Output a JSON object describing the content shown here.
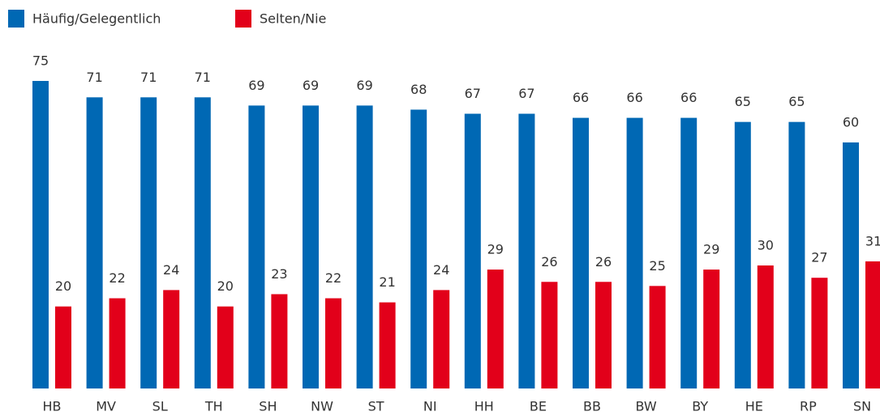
{
  "chart_data": {
    "type": "bar",
    "categories": [
      "HB",
      "MV",
      "SL",
      "TH",
      "SH",
      "NW",
      "ST",
      "NI",
      "HH",
      "BE",
      "BB",
      "BW",
      "BY",
      "HE",
      "RP",
      "SN"
    ],
    "series": [
      {
        "name": "Häufig/Gelegentlich",
        "color": "#0068b4",
        "values": [
          75,
          71,
          71,
          71,
          69,
          69,
          69,
          68,
          67,
          67,
          66,
          66,
          66,
          65,
          65,
          60
        ]
      },
      {
        "name": "Selten/Nie",
        "color": "#e2001a",
        "values": [
          20,
          22,
          24,
          20,
          23,
          22,
          21,
          24,
          29,
          26,
          26,
          25,
          29,
          30,
          27,
          31
        ]
      }
    ],
    "ylim": [
      0,
      75
    ],
    "legend": "top-left"
  }
}
